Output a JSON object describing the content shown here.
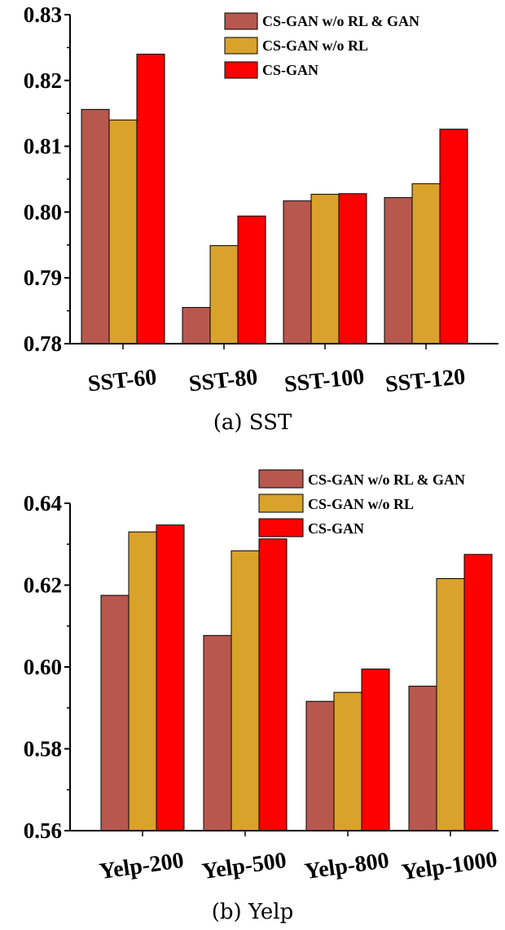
{
  "chart_data": [
    {
      "type": "bar",
      "caption": "(a) SST",
      "categories": [
        "SST-60",
        "SST-80",
        "SST-100",
        "SST-120"
      ],
      "series": [
        {
          "name": "CS-GAN w/o RL & GAN",
          "color": "#b8574e",
          "values": [
            0.8156,
            0.7855,
            0.8017,
            0.8022
          ]
        },
        {
          "name": "CS-GAN w/o RL",
          "color": "#d9a22b",
          "values": [
            0.814,
            0.7949,
            0.8027,
            0.8043
          ]
        },
        {
          "name": "CS-GAN",
          "color": "#ff0000",
          "values": [
            0.824,
            0.7994,
            0.8028,
            0.8126
          ]
        }
      ],
      "ylim": [
        0.78,
        0.83
      ],
      "yticks": [
        "0.78",
        "0.79",
        "0.80",
        "0.81",
        "0.82",
        "0.83"
      ],
      "legend": "top-right",
      "grid": false
    },
    {
      "type": "bar",
      "caption": "(b) Yelp",
      "categories": [
        "Yelp-200",
        "Yelp-500",
        "Yelp-800",
        "Yelp-1000"
      ],
      "series": [
        {
          "name": "CS-GAN w/o RL & GAN",
          "color": "#b8574e",
          "values": [
            0.6175,
            0.6077,
            0.5916,
            0.5953
          ]
        },
        {
          "name": "CS-GAN w/o RL",
          "color": "#d9a22b",
          "values": [
            0.633,
            0.6284,
            0.5938,
            0.6216
          ]
        },
        {
          "name": "CS-GAN",
          "color": "#ff0000",
          "values": [
            0.6347,
            0.6313,
            0.5995,
            0.6275
          ]
        }
      ],
      "ylim": [
        0.56,
        0.64
      ],
      "yticks": [
        "0.56",
        "0.58",
        "0.60",
        "0.62",
        "0.64"
      ],
      "legend": "top-right",
      "grid": false
    }
  ]
}
